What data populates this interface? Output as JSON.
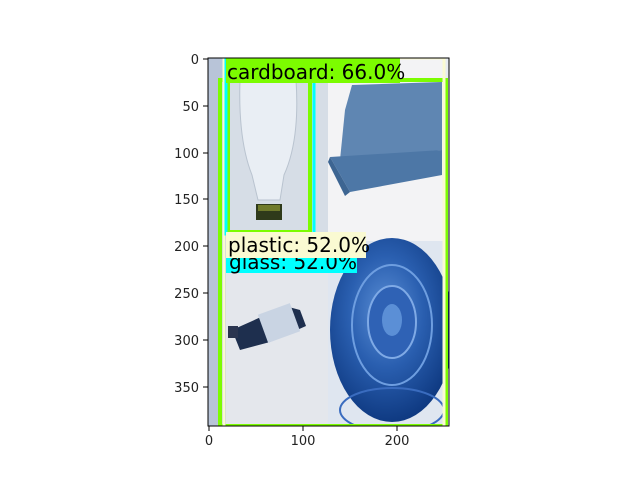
{
  "axes": {
    "x_ticks": [
      "0",
      "100",
      "200"
    ],
    "y_ticks": [
      "0",
      "50",
      "100",
      "150",
      "200",
      "250",
      "300",
      "350"
    ]
  },
  "detections": [
    {
      "label": "cardboard: 66.0%",
      "color": "#7CFC00"
    },
    {
      "label": "plastic: 52.0%",
      "color": "#FAFAD2"
    },
    {
      "label": "glass: 52.0%",
      "color": "#00FFFF"
    }
  ],
  "photos": [
    {
      "subject": "plastic-jug"
    },
    {
      "subject": "cardboard-sheet"
    },
    {
      "subject": "glass-bottle"
    },
    {
      "subject": "blue-plastic-container"
    }
  ]
}
